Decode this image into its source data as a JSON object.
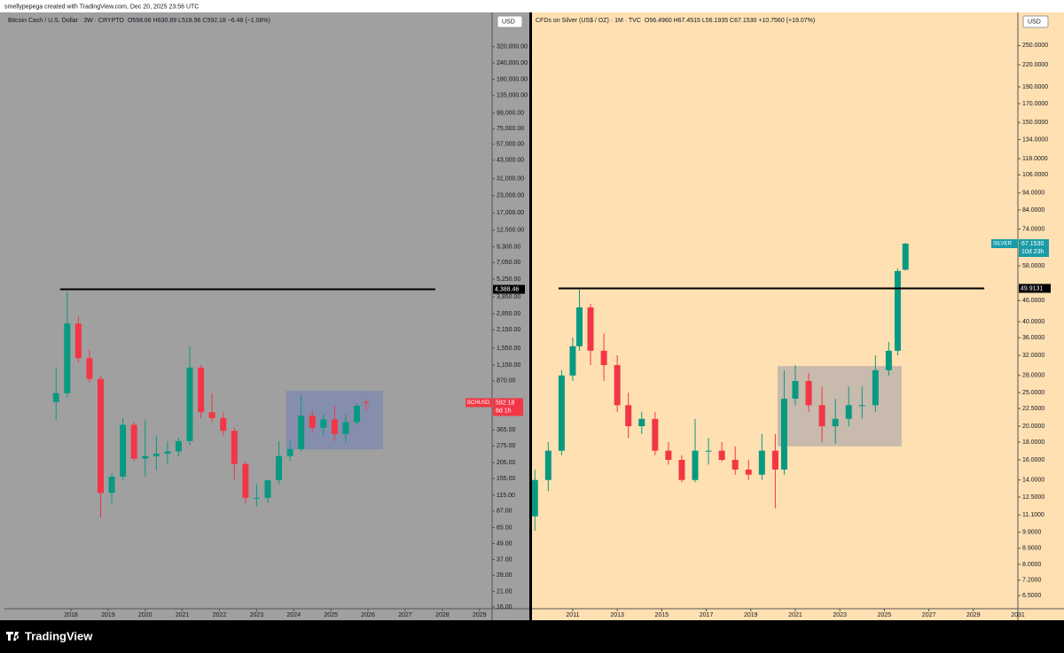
{
  "header": "smellypepega created with TradingView.com, Dec 20, 2025 23:56 UTC",
  "footer": {
    "brand": "TradingView"
  },
  "chart_data": [
    {
      "type": "candlestick",
      "title": "Bitcoin Cash / U.S. Dollar · 3W · CRYPTO",
      "ohlc_label": "O598.66 H630.89 L518.96 C592.18 −6.48 (−1.08%)",
      "currency": "USD",
      "background": "#a0a0a0",
      "log_scale": true,
      "up_color": "#089981",
      "down_color": "#f23645",
      "x": [
        2017.6,
        2017.9,
        2018.2,
        2018.5,
        2018.8,
        2019.1,
        2019.4,
        2019.7,
        2020.0,
        2020.3,
        2020.6,
        2020.9,
        2021.2,
        2021.5,
        2021.8,
        2022.1,
        2022.4,
        2022.7,
        2023.0,
        2023.3,
        2023.6,
        2023.9,
        2024.2,
        2024.5,
        2024.8,
        2025.1,
        2025.4,
        2025.7,
        2025.95
      ],
      "open": [
        600,
        700,
        2400,
        1300,
        900,
        120,
        160,
        400,
        220,
        230,
        240,
        250,
        300,
        1100,
        500,
        450,
        360,
        200,
        110,
        110,
        150,
        230,
        260,
        470,
        380,
        440,
        340,
        420,
        598.66
      ],
      "high": [
        1100,
        4200,
        2700,
        1500,
        950,
        170,
        450,
        420,
        440,
        330,
        300,
        320,
        1600,
        1150,
        700,
        500,
        380,
        210,
        140,
        150,
        300,
        300,
        680,
        520,
        480,
        560,
        480,
        580,
        630.89
      ],
      "low": [
        440,
        650,
        1200,
        850,
        78,
        100,
        150,
        210,
        160,
        180,
        200,
        230,
        280,
        450,
        420,
        330,
        150,
        100,
        95,
        100,
        140,
        210,
        250,
        350,
        330,
        300,
        290,
        400,
        518.96
      ],
      "close": [
        700,
        2400,
        1300,
        900,
        120,
        160,
        400,
        220,
        230,
        240,
        250,
        300,
        1100,
        500,
        450,
        360,
        200,
        110,
        110,
        150,
        230,
        260,
        470,
        380,
        440,
        340,
        420,
        560,
        592.18
      ],
      "xlim": [
        2016.21,
        2029.34
      ],
      "xticks": [
        2018,
        2019,
        2020,
        2021,
        2022,
        2023,
        2024,
        2025,
        2026,
        2027,
        2028,
        2029
      ],
      "ylim": [
        15.5,
        560000
      ],
      "yticks": [
        {
          "value": 16,
          "label": "16.00"
        },
        {
          "value": 21,
          "label": "21.00"
        },
        {
          "value": 28,
          "label": "28.00"
        },
        {
          "value": 37,
          "label": "37.00"
        },
        {
          "value": 49,
          "label": "49.00"
        },
        {
          "value": 65,
          "label": "65.00"
        },
        {
          "value": 87,
          "label": "87.00"
        },
        {
          "value": 115,
          "label": "115.00"
        },
        {
          "value": 155,
          "label": "155.00"
        },
        {
          "value": 205,
          "label": "205.00"
        },
        {
          "value": 275,
          "label": "275.00"
        },
        {
          "value": 365,
          "label": "365.00"
        },
        {
          "value": 870,
          "label": "870.00"
        },
        {
          "value": 1150,
          "label": "1,150.00"
        },
        {
          "value": 1550,
          "label": "1,550.00"
        },
        {
          "value": 2150,
          "label": "2,150.00"
        },
        {
          "value": 2850,
          "label": "2,850.00"
        },
        {
          "value": 3850,
          "label": "3,850.00"
        },
        {
          "value": 5250,
          "label": "5,250.00"
        },
        {
          "value": 7050,
          "label": "7,050.00"
        },
        {
          "value": 9300,
          "label": "9,300.00"
        },
        {
          "value": 12500,
          "label": "12,500.00"
        },
        {
          "value": 17000,
          "label": "17,000.00"
        },
        {
          "value": 23000,
          "label": "23,000.00"
        },
        {
          "value": 31000,
          "label": "31,000.00"
        },
        {
          "value": 43000,
          "label": "43,000.00"
        },
        {
          "value": 57000,
          "label": "57,000.00"
        },
        {
          "value": 75000,
          "label": "75,000.00"
        },
        {
          "value": 99000,
          "label": "99,000.00"
        },
        {
          "value": 135000,
          "label": "135,000.00"
        },
        {
          "value": 180000,
          "label": "180,000.00"
        },
        {
          "value": 240000,
          "label": "240,000.00"
        },
        {
          "value": 320000,
          "label": "320,000.00"
        }
      ],
      "hline": {
        "value": {
          "value": 4388.46,
          "label": "4,388.46"
        },
        "x": [
          2017.71,
          2027.81
        ],
        "color": "#000000"
      },
      "box": {
        "x": [
          2023.8,
          2026.4
        ],
        "y": [
          259,
          730
        ],
        "color": "#6f80b8"
      },
      "last_price": {
        "symbol": "BCHUSD",
        "value": 592.18,
        "countdown": "8d 1h",
        "color": "#f23645"
      }
    },
    {
      "type": "candlestick",
      "title": "CFDs on Silver (US$ / OZ) · 1M · TVC",
      "ohlc_label": "O56.4960 H67.4515 L56.1935 C67.1530 +10.7560 (+19.07%)",
      "currency": "USD",
      "background": "#ffe0b2",
      "log_scale": true,
      "up_color": "#089981",
      "down_color": "#f23645",
      "x": [
        2009.3,
        2009.9,
        2010.5,
        2011.0,
        2011.3,
        2011.8,
        2012.4,
        2013.0,
        2013.5,
        2014.1,
        2014.7,
        2015.3,
        2015.9,
        2016.5,
        2017.1,
        2017.7,
        2018.3,
        2018.9,
        2019.5,
        2020.1,
        2020.5,
        2021.0,
        2021.6,
        2022.2,
        2022.8,
        2023.4,
        2024.0,
        2024.6,
        2025.2,
        2025.6,
        2025.95
      ],
      "open": [
        11,
        14,
        17,
        28,
        34,
        44,
        33,
        30,
        23,
        20,
        21,
        17,
        16,
        14,
        17,
        17,
        16,
        15,
        14.5,
        17,
        15,
        24,
        27,
        23,
        20,
        21,
        23,
        23,
        29,
        33,
        56.496
      ],
      "high": [
        15,
        18,
        29,
        36,
        49.5,
        45,
        37,
        32,
        25,
        22,
        22,
        18,
        16.5,
        21,
        18.5,
        18,
        17.5,
        16,
        19,
        19,
        29,
        30,
        28.5,
        26,
        24,
        26,
        26,
        32,
        35,
        57,
        67.4515
      ],
      "low": [
        10,
        13,
        16.5,
        27,
        33,
        30,
        27,
        22,
        18.5,
        19,
        16.5,
        15.5,
        13.8,
        13.8,
        15.5,
        15.8,
        14.5,
        14,
        14,
        11.6,
        14.5,
        23,
        22,
        18,
        17.8,
        20,
        21,
        22,
        28,
        32,
        56.1935
      ],
      "close": [
        14,
        17,
        28,
        34,
        44,
        33,
        30,
        23,
        20,
        21,
        17,
        16,
        14,
        17,
        17,
        16,
        15,
        14.5,
        17,
        15,
        24,
        27,
        23,
        20,
        21,
        23,
        23,
        29,
        33,
        56,
        67.153
      ],
      "xlim": [
        2009.17,
        2031.0
      ],
      "xticks": [
        2011,
        2013,
        2015,
        2017,
        2019,
        2021,
        2023,
        2025,
        2027,
        2029,
        2031
      ],
      "ylim": [
        5.96,
        306
      ],
      "yticks": [
        {
          "value": 6.5,
          "label": "6.5000"
        },
        {
          "value": 7.2,
          "label": "7.2000"
        },
        {
          "value": 8,
          "label": "8.0000"
        },
        {
          "value": 8.9,
          "label": "8.9000"
        },
        {
          "value": 9.9,
          "label": "9.9000"
        },
        {
          "value": 11.1,
          "label": "11.1000"
        },
        {
          "value": 12.5,
          "label": "12.5000"
        },
        {
          "value": 14,
          "label": "14.0000"
        },
        {
          "value": 16,
          "label": "16.0000"
        },
        {
          "value": 18,
          "label": "18.0000"
        },
        {
          "value": 20,
          "label": "20.0000"
        },
        {
          "value": 22.5,
          "label": "22.5000"
        },
        {
          "value": 25,
          "label": "25.0000"
        },
        {
          "value": 28,
          "label": "28.0000"
        },
        {
          "value": 32,
          "label": "32.0000"
        },
        {
          "value": 36,
          "label": "36.0000"
        },
        {
          "value": 40,
          "label": "40.0000"
        },
        {
          "value": 46,
          "label": "46.0000"
        },
        {
          "value": 58,
          "label": "58.0000"
        },
        {
          "value": 74,
          "label": "74.0000"
        },
        {
          "value": 84,
          "label": "84.0000"
        },
        {
          "value": 94,
          "label": "94.0000"
        },
        {
          "value": 106,
          "label": "106.0000"
        },
        {
          "value": 118,
          "label": "118.0000"
        },
        {
          "value": 134,
          "label": "134.0000"
        },
        {
          "value": 150,
          "label": "150.0000"
        },
        {
          "value": 170,
          "label": "170.0000"
        },
        {
          "value": 190,
          "label": "190.0000"
        },
        {
          "value": 220,
          "label": "220.0000"
        },
        {
          "value": 250,
          "label": "250.0000"
        }
      ],
      "hline": {
        "value": 49.9131,
        "x": [
          2010.36,
          2029.49
        ],
        "color": "#000000"
      },
      "box": {
        "x": [
          2020.2,
          2025.78
        ],
        "y": [
          17.5,
          29.8
        ],
        "color": "#9a9aa8"
      },
      "last_price": {
        "symbol": "SILVER",
        "value": {
          "value": 67.153,
          "label": "67.1530"
        },
        "countdown": "10d 23h",
        "color": "#1a9ba8"
      }
    }
  ]
}
